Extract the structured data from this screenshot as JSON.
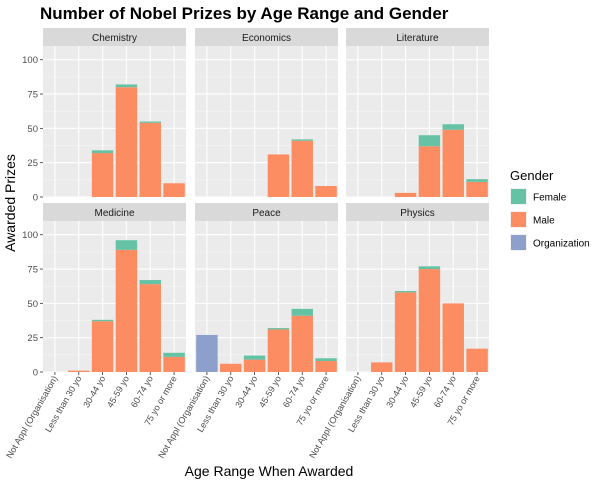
{
  "chart_data": {
    "type": "bar",
    "title": "Number of Nobel Prizes by Age Range and Gender",
    "xlabel": "Age Range When Awarded",
    "ylabel": "Awarded Prizes",
    "ylim": [
      0,
      110
    ],
    "yticks": [
      0,
      25,
      50,
      75,
      100
    ],
    "categories": [
      "Not Appl (Organisation)",
      "Less than 30 yo",
      "30-44 yo",
      "45-59 yo",
      "60-74 yo",
      "75 yo or more"
    ],
    "stack_order": [
      "Organization",
      "Male",
      "Female"
    ],
    "legend": {
      "title": "Gender",
      "position": "right",
      "entries": [
        {
          "name": "Female",
          "color": "#66C2A5"
        },
        {
          "name": "Male",
          "color": "#FC8D62"
        },
        {
          "name": "Organization",
          "color": "#8DA0CB"
        }
      ]
    },
    "facets": [
      {
        "name": "Chemistry",
        "series": {
          "Female": [
            0,
            0,
            2,
            2,
            1,
            0
          ],
          "Male": [
            0,
            0,
            32,
            80,
            54,
            10
          ],
          "Organization": [
            0,
            0,
            0,
            0,
            0,
            0
          ]
        }
      },
      {
        "name": "Economics",
        "series": {
          "Female": [
            0,
            0,
            0,
            0,
            1,
            0
          ],
          "Male": [
            0,
            0,
            0,
            31,
            41,
            8
          ],
          "Organization": [
            0,
            0,
            0,
            0,
            0,
            0
          ]
        }
      },
      {
        "name": "Literature",
        "series": {
          "Female": [
            0,
            0,
            0,
            8,
            4,
            2
          ],
          "Male": [
            0,
            0,
            3,
            37,
            49,
            11
          ],
          "Organization": [
            0,
            0,
            0,
            0,
            0,
            0
          ]
        }
      },
      {
        "name": "Medicine",
        "series": {
          "Female": [
            0,
            0,
            1,
            7,
            3,
            3
          ],
          "Male": [
            0,
            1,
            37,
            89,
            64,
            11
          ],
          "Organization": [
            0,
            0,
            0,
            0,
            0,
            0
          ]
        }
      },
      {
        "name": "Peace",
        "series": {
          "Female": [
            0,
            0,
            3,
            1,
            5,
            2
          ],
          "Male": [
            0,
            6,
            9,
            31,
            41,
            8
          ],
          "Organization": [
            27,
            0,
            0,
            0,
            0,
            0
          ]
        }
      },
      {
        "name": "Physics",
        "series": {
          "Female": [
            0,
            0,
            1,
            2,
            0,
            0
          ],
          "Male": [
            0,
            7,
            58,
            75,
            50,
            17
          ],
          "Organization": [
            0,
            0,
            0,
            0,
            0,
            0
          ]
        }
      }
    ]
  }
}
